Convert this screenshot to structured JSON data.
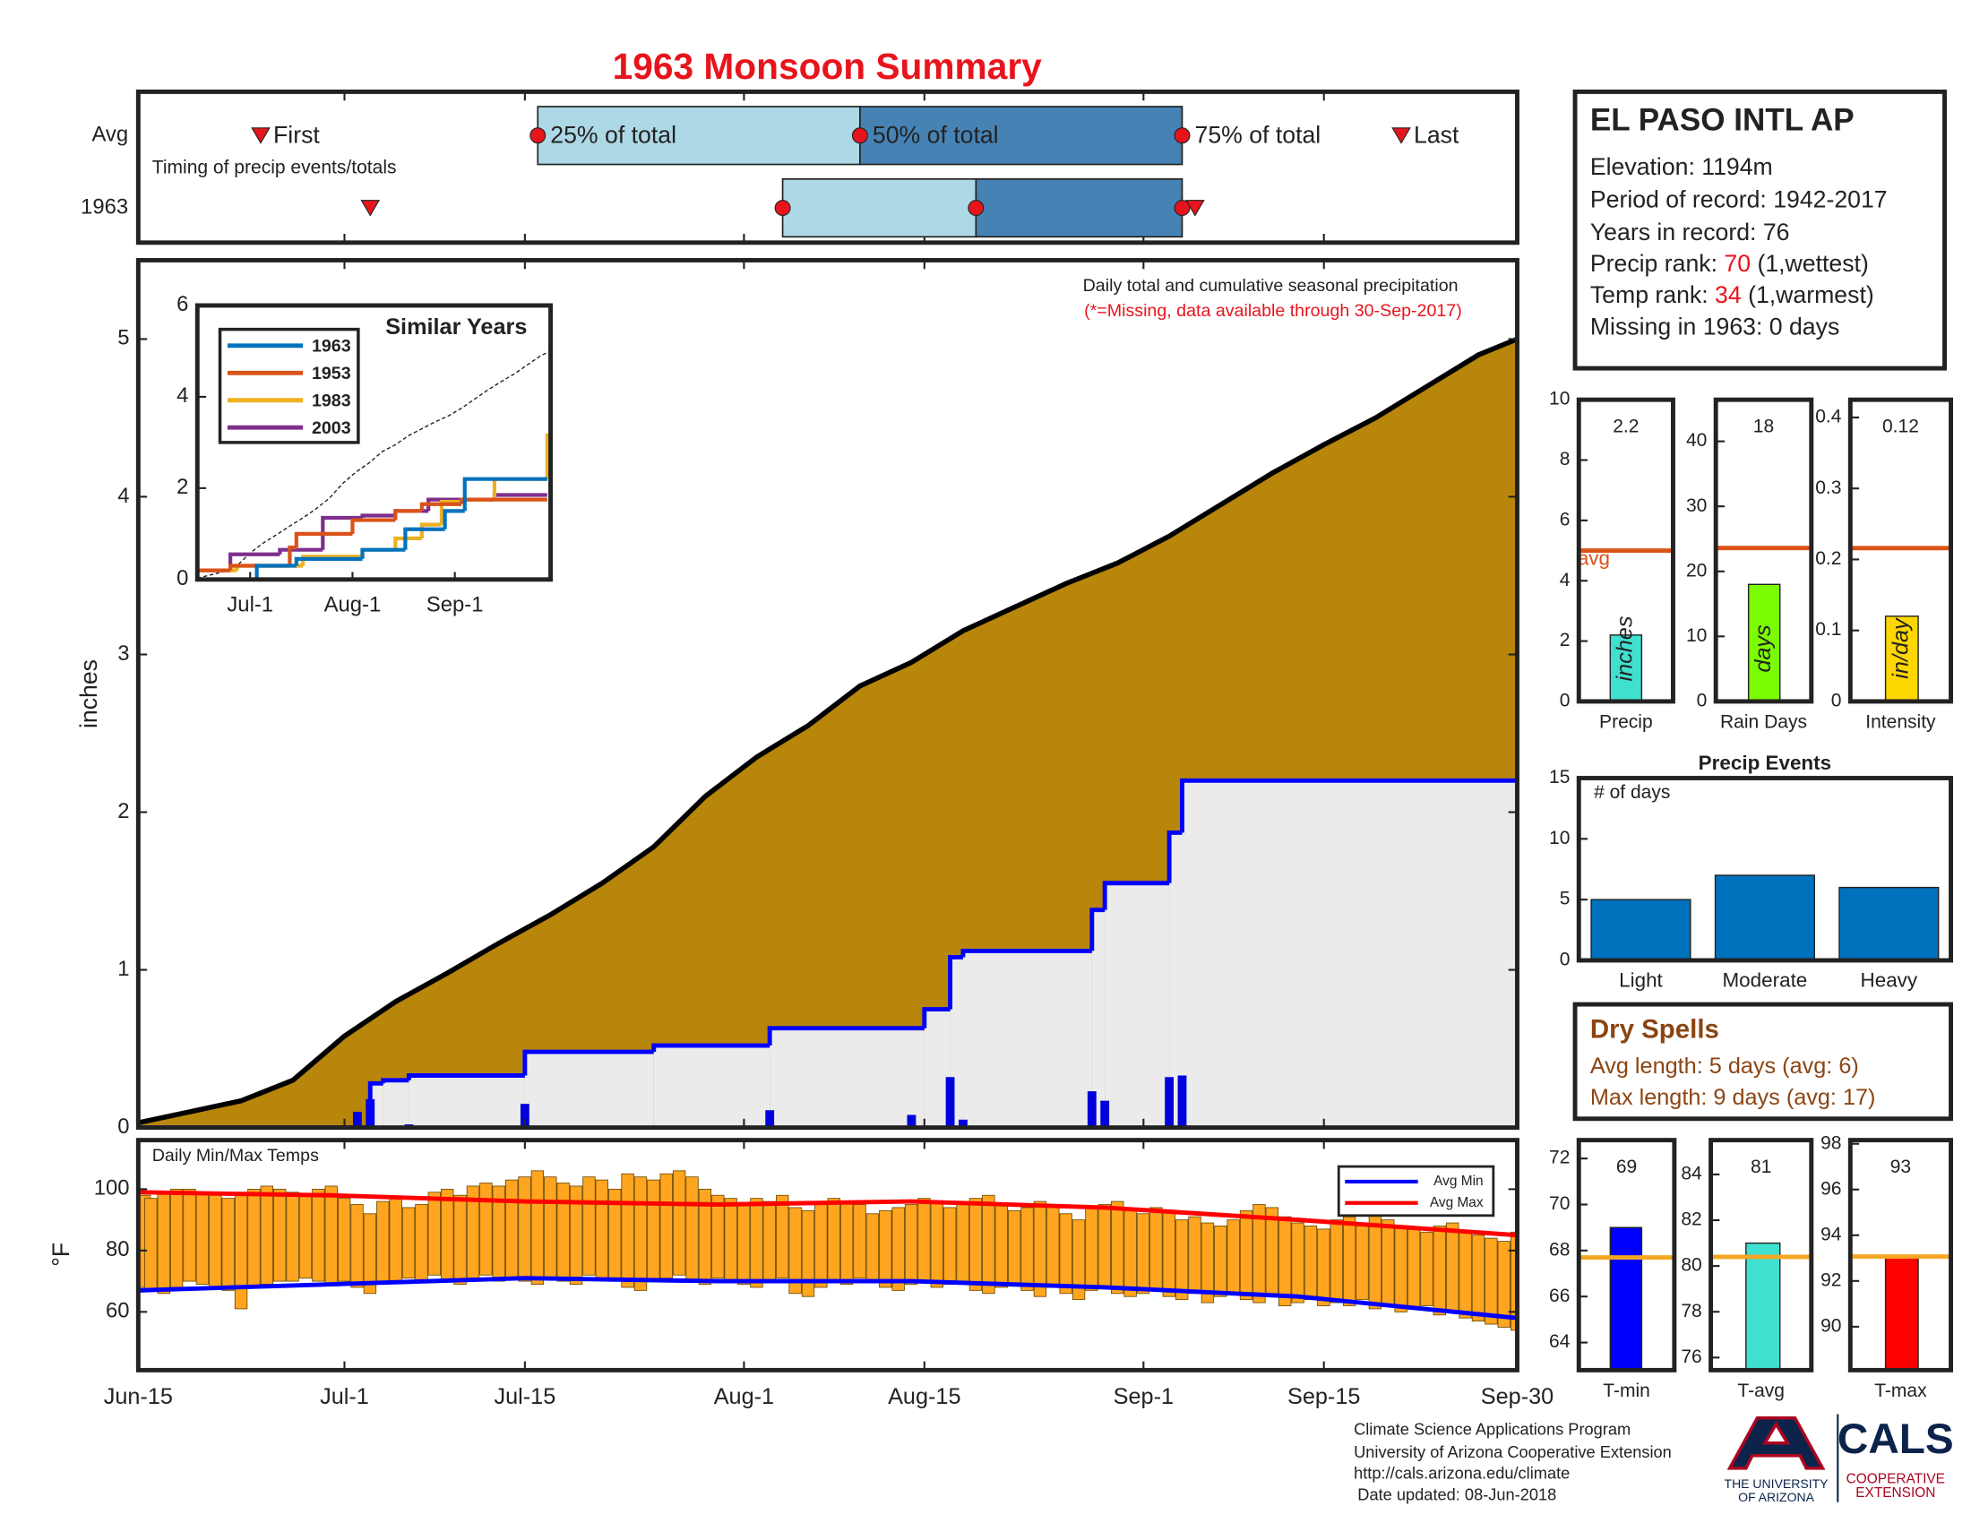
{
  "title": "1963 Monsoon Summary",
  "station": {
    "title": "EL PASO INTL AP",
    "lines": [
      "Elevation: 1194m",
      "Period of record: 1942-2017",
      "Years in record: 76"
    ],
    "precip_rank": [
      "Precip rank:",
      "70",
      "(1,wettest)"
    ],
    "temp_rank": [
      "Temp rank:",
      "34",
      "(1,warmest)"
    ],
    "missing": "Missing in 1963: 0 days"
  },
  "dry_spells": {
    "title": "Dry Spells",
    "lines": [
      "Avg length: 5 days (avg: 6)",
      "Max length: 9 days (avg: 17)"
    ]
  },
  "footer": {
    "lines": [
      "Climate Science Applications Program",
      "University of Arizona Cooperative Extension",
      "http://cals.arizona.edu/climate",
      "Date updated: 08-Jun-2018"
    ],
    "university": [
      "THE UNIVERSITY",
      "OF ARIZONA"
    ],
    "cals": "CALS",
    "extension": [
      "COOPERATIVE",
      "EXTENSION"
    ]
  },
  "chart_data": [
    {
      "type": "timing",
      "annotation": "Timing of precip events/totals",
      "xlim": [
        0,
        107
      ],
      "markers": [
        "First",
        "25% of total",
        "50% of total",
        "75% of total",
        "Last"
      ],
      "rows": [
        {
          "name": "Avg",
          "values": [
            9.5,
            31,
            56,
            81,
            98
          ]
        },
        {
          "name": "1963",
          "values": [
            18,
            50,
            65,
            81,
            82
          ]
        }
      ],
      "colors": [
        "#add8e6",
        "#4682b4"
      ]
    },
    {
      "type": "area",
      "title": "Daily total and cumulative seasonal precipitation",
      "note": "(*=Missing, data available through 30-Sep-2017)",
      "ylabel": "inches",
      "xlim": [
        0,
        107
      ],
      "ylim": [
        0,
        5.5
      ],
      "yticks": [
        0,
        1,
        2,
        3,
        4,
        5
      ],
      "avg": {
        "color": "#b8860b",
        "x": [
          0,
          4,
          8,
          12,
          16,
          20,
          24,
          28,
          32,
          36,
          40,
          44,
          48,
          52,
          56,
          60,
          64,
          68,
          72,
          76,
          80,
          84,
          88,
          92,
          96,
          100,
          104,
          107
        ],
        "values": [
          0.03,
          0.1,
          0.17,
          0.3,
          0.58,
          0.8,
          0.98,
          1.17,
          1.35,
          1.55,
          1.78,
          2.1,
          2.35,
          2.55,
          2.8,
          2.95,
          3.15,
          3.3,
          3.45,
          3.58,
          3.75,
          3.95,
          4.15,
          4.33,
          4.5,
          4.7,
          4.9,
          5.0
        ]
      },
      "observed": {
        "color": "#0000ff",
        "fill": "#ebebeb",
        "x": [
          0,
          18,
          19,
          21,
          30,
          40,
          49,
          61,
          63,
          64,
          74,
          75,
          80,
          81,
          107
        ],
        "values": [
          0,
          0.28,
          0.3,
          0.33,
          0.48,
          0.52,
          0.63,
          0.75,
          1.08,
          1.12,
          1.38,
          1.55,
          1.87,
          2.2,
          2.2
        ]
      },
      "daily": {
        "color": "#0000dd",
        "x": [
          17,
          18,
          21,
          30,
          49,
          60,
          63,
          64,
          74,
          75,
          80,
          81
        ],
        "values": [
          0.1,
          0.18,
          0.02,
          0.15,
          0.11,
          0.08,
          0.32,
          0.05,
          0.23,
          0.17,
          0.32,
          0.33
        ]
      }
    },
    {
      "type": "line",
      "title": "Similar Years",
      "xlim": [
        0,
        107
      ],
      "ylim": [
        0,
        6
      ],
      "yticks": [
        0,
        2,
        4,
        6
      ],
      "xticks": [
        {
          "value": 16,
          "label": "Jul-1"
        },
        {
          "value": 47,
          "label": "Aug-1"
        },
        {
          "value": 78,
          "label": "Sep-1"
        }
      ],
      "series": [
        {
          "name": "1963",
          "color": "#0072bd",
          "x": [
            0,
            18,
            30,
            50,
            63,
            75,
            81,
            106
          ],
          "values": [
            0,
            0.3,
            0.45,
            0.65,
            1.1,
            1.5,
            2.2,
            2.2
          ]
        },
        {
          "name": "1953",
          "color": "#d95319",
          "x": [
            0,
            10,
            28,
            30,
            47,
            60,
            68,
            80,
            106
          ],
          "values": [
            0.2,
            0.3,
            0.7,
            1.0,
            1.3,
            1.5,
            1.65,
            1.75,
            1.75
          ]
        },
        {
          "name": "1983",
          "color": "#edb120",
          "x": [
            0,
            12,
            32,
            50,
            60,
            68,
            74,
            80,
            90,
            104,
            106
          ],
          "values": [
            0.2,
            0.3,
            0.5,
            0.65,
            0.9,
            1.2,
            1.7,
            1.75,
            2.2,
            2.2,
            3.2
          ]
        },
        {
          "name": "2003",
          "color": "#7e2f8e",
          "x": [
            0,
            10,
            25,
            38,
            50,
            60,
            70,
            90,
            106
          ],
          "values": [
            0.2,
            0.55,
            0.65,
            1.35,
            1.4,
            1.5,
            1.75,
            1.85,
            1.85
          ]
        }
      ]
    },
    {
      "type": "range_bar",
      "title": "Daily Min/Max Temps",
      "ylabel": "°F",
      "xlim": [
        0,
        107
      ],
      "ylim": [
        41,
        116
      ],
      "yticks": [
        60,
        80,
        100
      ],
      "bar_color": "#ffa51f",
      "xticks": [
        {
          "value": 0,
          "label": "Jun-15"
        },
        {
          "value": 16,
          "label": "Jul-1"
        },
        {
          "value": 30,
          "label": "Jul-15"
        },
        {
          "value": 47,
          "label": "Aug-1"
        },
        {
          "value": 61,
          "label": "Aug-15"
        },
        {
          "value": 78,
          "label": "Sep-1"
        },
        {
          "value": 92,
          "label": "Sep-15"
        },
        {
          "value": 107,
          "label": "Sep-30"
        }
      ],
      "x": [
        0,
        1,
        2,
        3,
        4,
        5,
        6,
        7,
        8,
        9,
        10,
        11,
        12,
        13,
        14,
        15,
        16,
        17,
        18,
        19,
        20,
        21,
        22,
        23,
        24,
        25,
        26,
        27,
        28,
        29,
        30,
        31,
        32,
        33,
        34,
        35,
        36,
        37,
        38,
        39,
        40,
        41,
        42,
        43,
        44,
        45,
        46,
        47,
        48,
        49,
        50,
        51,
        52,
        53,
        54,
        55,
        56,
        57,
        58,
        59,
        60,
        61,
        62,
        63,
        64,
        65,
        66,
        67,
        68,
        69,
        70,
        71,
        72,
        73,
        74,
        75,
        76,
        77,
        78,
        79,
        80,
        81,
        82,
        83,
        84,
        85,
        86,
        87,
        88,
        89,
        90,
        91,
        92,
        93,
        94,
        95,
        96,
        97,
        98,
        99,
        100,
        101,
        102,
        103,
        104,
        105,
        106,
        107
      ],
      "tmax": [
        98,
        97,
        99,
        100,
        100,
        99,
        98,
        97,
        99,
        100,
        101,
        100,
        99,
        98,
        100,
        101,
        97,
        95,
        92,
        96,
        97,
        94,
        95,
        99,
        100,
        98,
        101,
        102,
        101,
        103,
        104,
        106,
        104,
        102,
        101,
        104,
        103,
        100,
        105,
        104,
        103,
        105,
        106,
        104,
        100,
        98,
        97,
        95,
        97,
        96,
        98,
        94,
        93,
        95,
        97,
        96,
        95,
        92,
        93,
        94,
        95,
        97,
        96,
        94,
        95,
        97,
        98,
        95,
        93,
        94,
        96,
        95,
        92,
        90,
        94,
        95,
        96,
        93,
        92,
        94,
        93,
        90,
        91,
        89,
        88,
        90,
        93,
        95,
        94,
        91,
        89,
        88,
        87,
        90,
        91,
        89,
        92,
        90,
        88,
        87,
        86,
        88,
        89,
        86,
        85,
        84,
        83,
        86
      ],
      "tmin": [
        68,
        67,
        66,
        68,
        70,
        69,
        68,
        67,
        61,
        68,
        69,
        70,
        70,
        71,
        70,
        69,
        70,
        68,
        66,
        69,
        70,
        71,
        70,
        72,
        70,
        69,
        71,
        72,
        70,
        71,
        70,
        69,
        71,
        70,
        69,
        72,
        71,
        70,
        68,
        67,
        70,
        71,
        72,
        70,
        69,
        71,
        70,
        69,
        68,
        70,
        71,
        66,
        65,
        68,
        70,
        69,
        71,
        70,
        68,
        67,
        69,
        70,
        68,
        69,
        70,
        67,
        66,
        68,
        69,
        67,
        65,
        68,
        66,
        64,
        67,
        68,
        66,
        65,
        66,
        67,
        65,
        64,
        66,
        63,
        65,
        66,
        64,
        63,
        65,
        62,
        63,
        64,
        62,
        63,
        62,
        64,
        61,
        62,
        60,
        61,
        62,
        59,
        60,
        58,
        57,
        56,
        55,
        54
      ],
      "series": [
        {
          "name": "Avg Min",
          "color": "#0000ff",
          "x": [
            0,
            15,
            30,
            45,
            60,
            75,
            90,
            107
          ],
          "values": [
            67,
            69,
            71,
            70,
            70,
            68,
            65,
            58
          ]
        },
        {
          "name": "Avg Max",
          "color": "#ff0000",
          "x": [
            0,
            15,
            30,
            45,
            60,
            75,
            90,
            107
          ],
          "values": [
            99,
            98,
            96,
            95,
            96,
            94,
            90,
            85
          ]
        }
      ]
    },
    {
      "type": "bar",
      "xlabel": "Precip",
      "values": [
        2.2
      ],
      "avg": 5,
      "avg_label": "avg",
      "bar_label": "inches",
      "color": "#40e0d0",
      "avg_color": "#d95319",
      "ylim": [
        0,
        10
      ],
      "yticks": [
        0,
        2,
        4,
        6,
        8,
        10
      ]
    },
    {
      "type": "bar",
      "xlabel": "Rain Days",
      "values": [
        18
      ],
      "avg": 23.6,
      "bar_label": "days",
      "color": "#7cfc00",
      "avg_color": "#d95319",
      "ylim": [
        0,
        46.4
      ],
      "yticks": [
        0,
        10,
        20,
        30,
        40
      ]
    },
    {
      "type": "bar",
      "xlabel": "Intensity",
      "values": [
        0.12
      ],
      "avg": 0.216,
      "bar_label": "in/day",
      "color": "#ffd700",
      "avg_color": "#d95319",
      "ylim": [
        0,
        0.425
      ],
      "yticks": [
        0,
        0.1,
        0.2,
        0.3,
        0.4
      ]
    },
    {
      "type": "bar",
      "title": "Precip Events",
      "annotation": "# of days",
      "categories": [
        "Light",
        "Moderate",
        "Heavy"
      ],
      "values": [
        5,
        7,
        6
      ],
      "color": "#0072bd",
      "ylim": [
        0,
        15
      ],
      "yticks": [
        0,
        5,
        10,
        15
      ]
    },
    {
      "type": "bar",
      "xlabel": "T-min",
      "values": [
        69
      ],
      "avg": 67.7,
      "color": "#0000ff",
      "avg_color": "#f5a623",
      "ylim": [
        62.8,
        72.8
      ],
      "yticks": [
        64,
        66,
        68,
        70,
        72
      ]
    },
    {
      "type": "bar",
      "xlabel": "T-avg",
      "values": [
        81
      ],
      "avg": 80.4,
      "color": "#40e0d0",
      "avg_color": "#f5a623",
      "ylim": [
        75.45,
        85.5
      ],
      "yticks": [
        76,
        78,
        80,
        82,
        84
      ]
    },
    {
      "type": "bar",
      "xlabel": "T-max",
      "values": [
        93
      ],
      "avg": 93.07,
      "color": "#ff0000",
      "avg_color": "#f5a623",
      "ylim": [
        88.1,
        98.16
      ],
      "yticks": [
        90,
        92,
        94,
        96,
        98
      ]
    }
  ]
}
